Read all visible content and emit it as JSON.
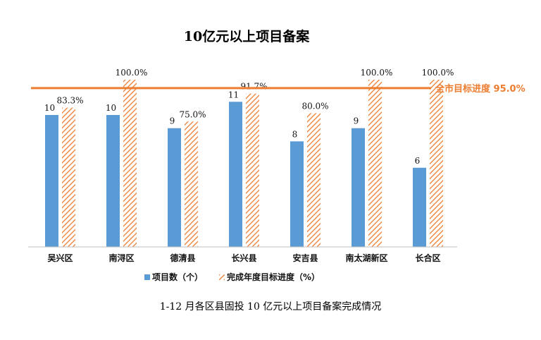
{
  "chart_data": {
    "type": "bar",
    "title": "10亿元以上项目备案",
    "categories": [
      "吴兴区",
      "南浔区",
      "德清县",
      "长兴县",
      "安吉县",
      "南太湖新区",
      "长合区"
    ],
    "series": [
      {
        "name": "项目数（个）",
        "values": [
          10,
          10,
          9,
          11,
          null,
          9,
          6
        ],
        "labels": [
          "10",
          "10",
          "9",
          "11",
          "8",
          "9",
          "6"
        ],
        "color": "#5B9BD5"
      },
      {
        "name": "完成年度目标进度（%）",
        "values": [
          83.3,
          100.0,
          75.0,
          91.7,
          80.0,
          100.0,
          100.0
        ],
        "labels": [
          "83.3%",
          "100.0%",
          "75.0%",
          "91.7%",
          "80.0%",
          "100.0%",
          "100.0%"
        ],
        "color": "#ED7D31"
      }
    ],
    "target": {
      "label": "全市目标进度 95.0%",
      "value": 95.0,
      "color": "#ED7D31"
    },
    "legend_position": "bottom",
    "grid": false
  },
  "caption": "1-12 月各区县固投 10 亿元以上项目备案完成情况"
}
